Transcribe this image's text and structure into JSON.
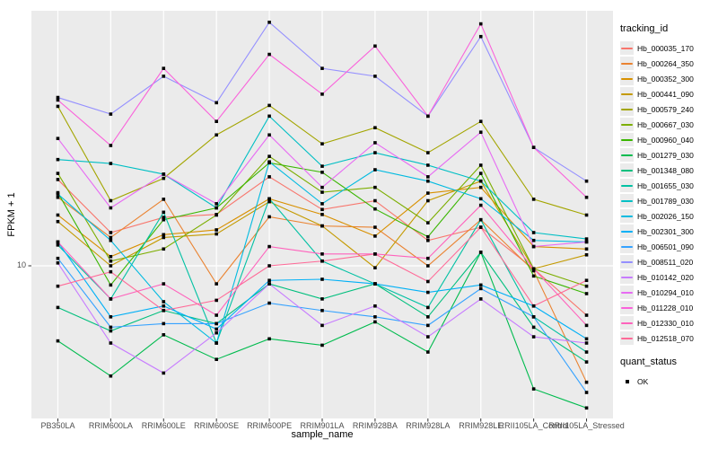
{
  "figure": {
    "y_axis": {
      "title": "FPKM + 1",
      "scale": "log10",
      "tick_labels": [
        "10"
      ]
    },
    "x_axis": {
      "title": "sample_name"
    },
    "legends": {
      "tracking": {
        "title": "tracking_id"
      },
      "quant": {
        "title": "quant_status",
        "items": [
          {
            "label": "OK",
            "marker": "filled-black-square"
          }
        ]
      }
    },
    "colors": {
      "panel_bg": "#EBEBEB",
      "grid": "#FFFFFF",
      "tick_text": "#4D4D4D",
      "axis_text": "#000000",
      "point": "#000000"
    }
  },
  "chart_data": {
    "type": "line",
    "title": "",
    "xlabel": "sample_name",
    "ylabel": "FPKM + 1",
    "y_scale": "log10",
    "ylim": [
      2,
      145
    ],
    "y_ticks": [
      10
    ],
    "grid": "on",
    "legend_position": "right",
    "point_marker": {
      "legend": "quant_status",
      "label": "OK",
      "shape": "filled-square",
      "color": "#000000"
    },
    "categories": [
      "PB350LA",
      "RRIM600LA",
      "RRIM600LE",
      "RRIM600SE",
      "RRIM600PE",
      "RRIM901LA",
      "RRIM928BA",
      "RRIM928LA",
      "RRIM928LE",
      "RRII105LA_Control",
      "RRII105LA_Stressed"
    ],
    "series": [
      {
        "name": "Hb_000035_170",
        "color": "#F8766D",
        "values": [
          24.4,
          14.1,
          16.5,
          17.0,
          25.1,
          17.9,
          19.6,
          13.0,
          14.9,
          9.7,
          6.0
        ]
      },
      {
        "name": "Hb_000264_350",
        "color": "#EA8331",
        "values": [
          20.3,
          13.4,
          19.9,
          8.3,
          16.6,
          15.1,
          14.9,
          10.0,
          16.1,
          9.5,
          3.0
        ]
      },
      {
        "name": "Hb_000352_300",
        "color": "#D89000",
        "values": [
          16.9,
          11.0,
          13.8,
          14.5,
          20.0,
          17.0,
          13.6,
          21.2,
          22.5,
          12.2,
          11.9
        ]
      },
      {
        "name": "Hb_000441_090",
        "color": "#C49A00",
        "values": [
          15.8,
          10.0,
          13.4,
          13.9,
          19.4,
          15.1,
          9.8,
          19.6,
          24.0,
          9.7,
          11.2
        ]
      },
      {
        "name": "Hb_000579_240",
        "color": "#A3A500",
        "values": [
          52.0,
          19.6,
          24.7,
          38.7,
          52.5,
          35.3,
          41.7,
          32.2,
          44.5,
          19.9,
          16.9
        ]
      },
      {
        "name": "Hb_000667_030",
        "color": "#7CAE00",
        "values": [
          26.0,
          10.5,
          11.9,
          16.9,
          31.0,
          21.4,
          22.5,
          15.6,
          28.3,
          9.7,
          8.1
        ]
      },
      {
        "name": "Hb_000960_040",
        "color": "#39B600",
        "values": [
          21.3,
          8.2,
          16.1,
          18.2,
          29.0,
          26.3,
          18.0,
          13.5,
          26.0,
          9.0,
          7.5
        ]
      },
      {
        "name": "Hb_001279_030",
        "color": "#00BB4E",
        "values": [
          4.6,
          3.2,
          4.9,
          3.8,
          4.7,
          4.4,
          5.6,
          4.1,
          11.5,
          2.8,
          2.3
        ]
      },
      {
        "name": "Hb_001348_080",
        "color": "#00BF7D",
        "values": [
          6.5,
          5.1,
          6.3,
          5.5,
          8.3,
          7.1,
          8.3,
          5.9,
          11.5,
          5.3,
          3.7
        ]
      },
      {
        "name": "Hb_001655_030",
        "color": "#00C1A3",
        "values": [
          12.4,
          7.1,
          17.4,
          4.5,
          20.0,
          10.5,
          8.3,
          6.5,
          16.1,
          5.9,
          4.1
        ]
      },
      {
        "name": "Hb_001789_030",
        "color": "#00BFC4",
        "values": [
          30.0,
          28.8,
          25.8,
          18.2,
          47.0,
          28.0,
          32.2,
          28.3,
          24.0,
          14.1,
          13.2
        ]
      },
      {
        "name": "Hb_002026_150",
        "color": "#00BAE0",
        "values": [
          21.0,
          13.0,
          6.9,
          4.5,
          29.3,
          19.0,
          27.0,
          24.0,
          20.0,
          13.0,
          12.8
        ]
      },
      {
        "name": "Hb_002301_300",
        "color": "#00B0F6",
        "values": [
          12.8,
          5.9,
          6.6,
          5.2,
          8.6,
          8.7,
          8.3,
          7.6,
          8.2,
          6.6,
          4.7
        ]
      },
      {
        "name": "Hb_006501_090",
        "color": "#35A2FF",
        "values": [
          10.8,
          5.3,
          5.5,
          5.5,
          6.8,
          6.3,
          5.9,
          5.4,
          7.9,
          5.9,
          2.7
        ]
      },
      {
        "name": "Hb_008511_020",
        "color": "#9590FF",
        "values": [
          57.0,
          48.0,
          71.0,
          54.0,
          124.0,
          77.0,
          71.0,
          47.0,
          107.0,
          34.0,
          24.0
        ]
      },
      {
        "name": "Hb_010142_020",
        "color": "#C77CFF",
        "values": [
          10.3,
          4.5,
          3.3,
          5.0,
          8.3,
          5.4,
          6.6,
          4.8,
          7.1,
          4.8,
          4.5
        ]
      },
      {
        "name": "Hb_010294_010",
        "color": "#E76BF3",
        "values": [
          37.3,
          18.2,
          25.8,
          19.0,
          38.7,
          22.5,
          35.7,
          25.1,
          39.8,
          12.2,
          12.8
        ]
      },
      {
        "name": "Hb_011228_010",
        "color": "#FA62DB",
        "values": [
          55.5,
          34.7,
          77.0,
          44.5,
          89.0,
          59.0,
          97.0,
          47.0,
          122.0,
          34.0,
          20.3
        ]
      },
      {
        "name": "Hb_012330_010",
        "color": "#FF62BC",
        "values": [
          12.8,
          7.1,
          8.3,
          6.0,
          12.2,
          11.3,
          11.3,
          10.8,
          18.7,
          9.7,
          5.4
        ]
      },
      {
        "name": "Hb_012518_070",
        "color": "#FF6A98",
        "values": [
          8.1,
          9.4,
          6.3,
          7.0,
          10.0,
          10.5,
          11.3,
          8.5,
          14.9,
          6.6,
          8.6
        ]
      }
    ]
  }
}
